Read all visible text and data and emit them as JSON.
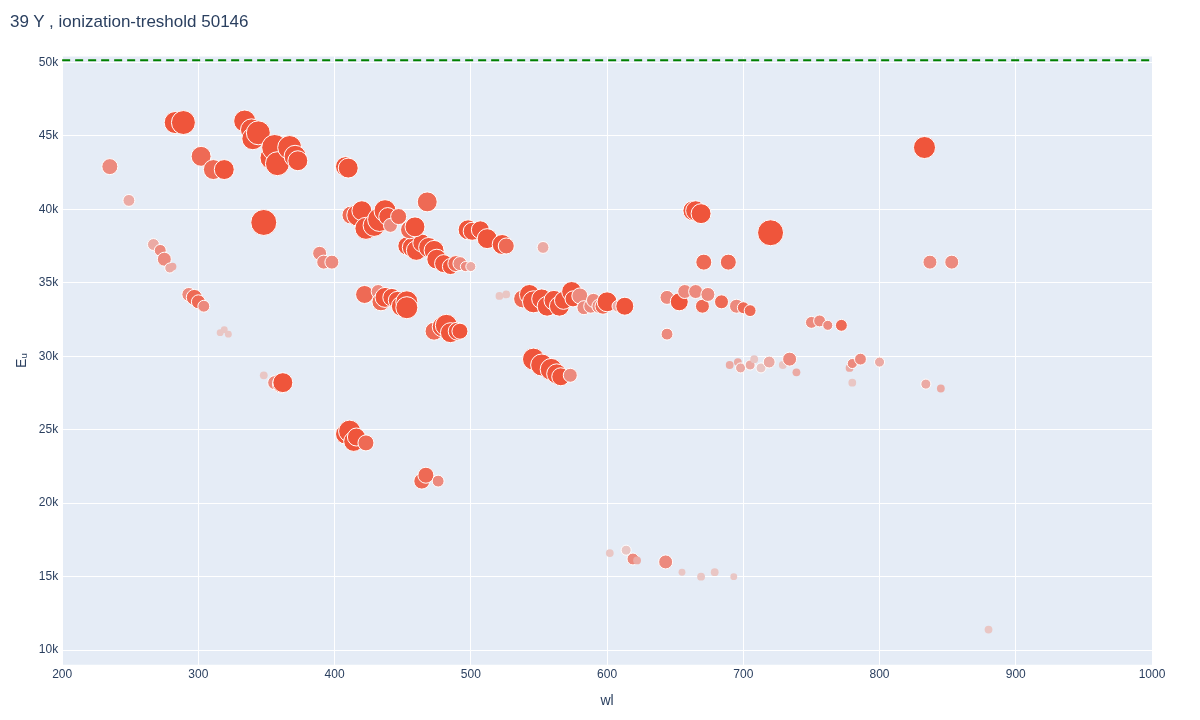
{
  "chart_data": {
    "type": "bubble",
    "title": "39 Y , ionization-treshold 50146",
    "xlabel": "wl",
    "ylabel": "Eᵤ",
    "x": [
      235,
      249,
      283,
      289,
      302,
      311,
      319,
      334,
      339,
      340,
      344,
      348,
      354,
      356,
      358,
      367,
      371,
      373,
      267,
      272,
      275,
      279,
      281,
      293,
      297,
      300,
      304,
      316,
      319,
      322,
      348,
      356,
      361,
      362,
      389,
      392,
      398,
      408,
      410,
      412,
      417,
      420,
      423,
      429,
      433,
      437,
      439,
      441,
      447,
      468,
      453,
      457,
      460,
      464,
      469,
      473,
      475,
      480,
      485,
      489,
      492,
      496,
      500,
      455,
      459,
      422,
      432,
      434,
      437,
      442,
      446,
      449,
      453,
      453,
      473,
      479,
      482,
      485,
      490,
      492,
      498,
      501,
      507,
      512,
      523,
      526,
      553,
      521,
      526,
      538,
      543,
      546,
      552,
      556,
      561,
      565,
      568,
      574,
      575,
      580,
      583,
      588,
      590,
      594,
      597,
      600,
      608,
      613,
      546,
      552,
      559,
      563,
      566,
      573,
      408,
      411,
      414,
      416,
      423,
      464,
      467,
      476,
      602,
      614,
      619,
      622,
      643,
      655,
      669,
      679,
      693,
      880,
      833,
      663,
      665,
      669,
      720,
      671,
      689,
      837,
      853,
      644,
      653,
      657,
      665,
      670,
      674,
      684,
      695,
      700,
      705,
      644,
      750,
      756,
      762,
      772,
      690,
      696,
      698,
      705,
      708,
      713,
      719,
      729,
      734,
      739,
      778,
      780,
      786,
      800,
      780,
      834,
      845
    ],
    "values": [
      42900,
      40600,
      45900,
      45900,
      43600,
      42700,
      42700,
      46000,
      45400,
      44800,
      45200,
      39100,
      43500,
      44200,
      43100,
      44200,
      43600,
      43300,
      37600,
      37200,
      36600,
      36000,
      36100,
      34200,
      34000,
      33700,
      33400,
      31600,
      31800,
      31500,
      28700,
      28200,
      28100,
      28200,
      37000,
      36400,
      36400,
      42900,
      42800,
      39600,
      39600,
      39900,
      38700,
      38900,
      39300,
      39900,
      39500,
      38900,
      39500,
      40500,
      37500,
      37400,
      37200,
      37700,
      37400,
      37200,
      36600,
      36300,
      36100,
      36300,
      36300,
      36100,
      36100,
      38600,
      38800,
      34200,
      34400,
      33700,
      34000,
      34000,
      33800,
      33400,
      33700,
      33300,
      31700,
      32000,
      32100,
      31600,
      31700,
      31700,
      38600,
      38500,
      38600,
      38000,
      37600,
      37500,
      37400,
      34100,
      34200,
      33900,
      34200,
      33700,
      33900,
      33400,
      33800,
      33400,
      33800,
      34400,
      33900,
      34100,
      33300,
      33400,
      33800,
      33400,
      33400,
      33700,
      33400,
      33400,
      29800,
      29400,
      29100,
      28800,
      28600,
      28700,
      24700,
      24900,
      24200,
      24500,
      24100,
      21500,
      21900,
      21500,
      16600,
      16800,
      16200,
      16100,
      16000,
      15300,
      15000,
      15300,
      15000,
      11400,
      44200,
      39900,
      39900,
      39700,
      38400,
      36400,
      36400,
      36400,
      36400,
      34000,
      33700,
      34400,
      34400,
      33400,
      34200,
      33700,
      33400,
      33300,
      33100,
      31500,
      32300,
      32400,
      32100,
      32100,
      29400,
      29600,
      29200,
      29400,
      29800,
      29200,
      29600,
      29400,
      29800,
      28900,
      29200,
      29500,
      29800,
      29600,
      28200,
      28100,
      27800
    ],
    "sizes": [
      0.38,
      0.21,
      0.72,
      0.85,
      0.59,
      0.59,
      0.59,
      0.72,
      0.72,
      0.72,
      0.85,
      1,
      0.85,
      1,
      0.85,
      0.85,
      0.72,
      0.59,
      0.21,
      0.21,
      0.29,
      0.15,
      0.09,
      0.29,
      0.38,
      0.29,
      0.21,
      0.07,
      0.07,
      0.07,
      0.09,
      0.29,
      0.48,
      0.59,
      0.29,
      0.29,
      0.29,
      0.59,
      0.59,
      0.48,
      0.72,
      0.59,
      0.72,
      0.72,
      0.85,
      0.72,
      0.48,
      0.29,
      0.38,
      0.59,
      0.48,
      0.59,
      0.59,
      0.48,
      0.59,
      0.59,
      0.59,
      0.48,
      0.38,
      0.38,
      0.29,
      0.15,
      0.15,
      0.48,
      0.59,
      0.48,
      0.29,
      0.48,
      0.59,
      0.48,
      0.48,
      0.59,
      0.72,
      0.72,
      0.48,
      0.59,
      0.72,
      0.59,
      0.48,
      0.38,
      0.59,
      0.48,
      0.48,
      0.59,
      0.59,
      0.38,
      0.21,
      0.09,
      0.09,
      0.48,
      0.59,
      0.72,
      0.59,
      0.59,
      0.59,
      0.59,
      0.48,
      0.59,
      0.38,
      0.38,
      0.29,
      0.29,
      0.29,
      0.29,
      0.38,
      0.59,
      0.21,
      0.48,
      0.72,
      0.72,
      0.72,
      0.59,
      0.48,
      0.29,
      0.59,
      0.72,
      0.59,
      0.48,
      0.38,
      0.38,
      0.38,
      0.21,
      0.09,
      0.15,
      0.21,
      0.09,
      0.29,
      0.07,
      0.09,
      0.09,
      0.07,
      0.09,
      0.72,
      0.59,
      0.59,
      0.59,
      1,
      0.38,
      0.38,
      0.29,
      0.29,
      0.29,
      0.48,
      0.29,
      0.29,
      0.29,
      0.29,
      0.29,
      0.29,
      0.21,
      0.21,
      0.21,
      0.21,
      0.21,
      0.15,
      0.21,
      0.09,
      0.09,
      0.15,
      0.15,
      0.09,
      0.15,
      0.21,
      0.09,
      0.29,
      0.09,
      0.09,
      0.15,
      0.21,
      0.15,
      0.09,
      0.15,
      0.09
    ],
    "colors": [
      "#ec8a7e",
      "#ebaaa4",
      "#ef553b",
      "#ef553b",
      "#ee6a55",
      "#ee6a55",
      "#ef553b",
      "#ef553b",
      "#ef553b",
      "#ef553b",
      "#ef553b",
      "#ef553b",
      "#ef553b",
      "#ef553b",
      "#ef553b",
      "#ef553b",
      "#ef553b",
      "#ef553b",
      "#ebaaa4",
      "#ec8a7e",
      "#ec8a7e",
      "#ebaaa4",
      "#ebaaa4",
      "#ec8a7e",
      "#ee6a55",
      "#ee6a55",
      "#ec8a7e",
      "#e9c6c4",
      "#e9c6c4",
      "#e9c6c4",
      "#e9c6c4",
      "#ec8a7e",
      "#ef553b",
      "#ef553b",
      "#ec8a7e",
      "#ec8a7e",
      "#ec8a7e",
      "#ef553b",
      "#ef553b",
      "#ee6a55",
      "#ef553b",
      "#ef553b",
      "#ef553b",
      "#ef553b",
      "#ef553b",
      "#ef553b",
      "#ef553b",
      "#ec8a7e",
      "#ee6a55",
      "#ee6a55",
      "#ef553b",
      "#ef553b",
      "#ef553b",
      "#ef553b",
      "#ef553b",
      "#ef553b",
      "#ef553b",
      "#ef553b",
      "#ef553b",
      "#ee6a55",
      "#ec8a7e",
      "#ec8a7e",
      "#ebaaa4",
      "#ee6a55",
      "#ef553b",
      "#ee6a55",
      "#ec8a7e",
      "#ee6a55",
      "#ef553b",
      "#ef553b",
      "#ef553b",
      "#ef553b",
      "#ef553b",
      "#ef553b",
      "#ee6a55",
      "#ef553b",
      "#ef553b",
      "#ef553b",
      "#ef553b",
      "#ef553b",
      "#ef553b",
      "#ef553b",
      "#ef553b",
      "#ef553b",
      "#ef553b",
      "#ee6a55",
      "#ebaaa4",
      "#e9c6c4",
      "#e9c6c4",
      "#ee6a55",
      "#ef553b",
      "#ef553b",
      "#ef553b",
      "#ef553b",
      "#ef553b",
      "#ef553b",
      "#ef553b",
      "#ef553b",
      "#ef553b",
      "#ec8a7e",
      "#ec8a7e",
      "#ec8a7e",
      "#ec8a7e",
      "#ec8a7e",
      "#ee6a55",
      "#ef553b",
      "#ebaaa4",
      "#ef553b",
      "#ef553b",
      "#ef553b",
      "#ef553b",
      "#ef553b",
      "#ef553b",
      "#ec8a7e",
      "#ef553b",
      "#ef553b",
      "#ef553b",
      "#ef553b",
      "#ee6a55",
      "#ee6a55",
      "#ee6a55",
      "#ec8a7e",
      "#e9c6c4",
      "#e9c6c4",
      "#ec8a7e",
      "#ebaaa4",
      "#ec8a7e",
      "#e9c6c4",
      "#e9c6c4",
      "#e9c6c4",
      "#e9c6c4",
      "#e9c6c4",
      "#ef553b",
      "#ef553b",
      "#ef553b",
      "#ef553b",
      "#ef553b",
      "#ee6a55",
      "#ee6a55",
      "#ec8a7e",
      "#ec8a7e",
      "#ec8a7e",
      "#ef553b",
      "#ec8a7e",
      "#ec8a7e",
      "#ee6a55",
      "#ec8a7e",
      "#ee6a55",
      "#ec8a7e",
      "#ee6a55",
      "#ee6a55",
      "#ec8a7e",
      "#ec8a7e",
      "#ec8a7e",
      "#ec8a7e",
      "#ee6a55",
      "#ebaaa4",
      "#ebaaa4",
      "#ebaaa4",
      "#ebaaa4",
      "#e9c6c4",
      "#e9c6c4",
      "#ebaaa4",
      "#e9c6c4",
      "#ec8a7e",
      "#ebaaa4",
      "#ebaaa4",
      "#ec8a7e",
      "#ec8a7e",
      "#ebaaa4",
      "#e9c6c4",
      "#ebaaa4",
      "#ebaaa4"
    ],
    "marker": "circle",
    "xlim": [
      200,
      1000
    ],
    "xticks": [
      200,
      300,
      400,
      500,
      600,
      700,
      800,
      900,
      1000
    ],
    "ylim": [
      9000,
      50400
    ],
    "yticks": [
      {
        "value": 10000,
        "label": "10k"
      },
      {
        "value": 15000,
        "label": "15k"
      },
      {
        "value": 20000,
        "label": "20k"
      },
      {
        "value": 25000,
        "label": "25k"
      },
      {
        "value": 30000,
        "label": "30k"
      },
      {
        "value": 35000,
        "label": "35k"
      },
      {
        "value": 40000,
        "label": "40k"
      },
      {
        "value": 45000,
        "label": "45k"
      },
      {
        "value": 50000,
        "label": "50k"
      }
    ],
    "ref_lines": [
      {
        "axis": "y",
        "value": 50146,
        "color": "#008000",
        "line_style": "dashed"
      }
    ],
    "grid": true,
    "legend": false
  }
}
